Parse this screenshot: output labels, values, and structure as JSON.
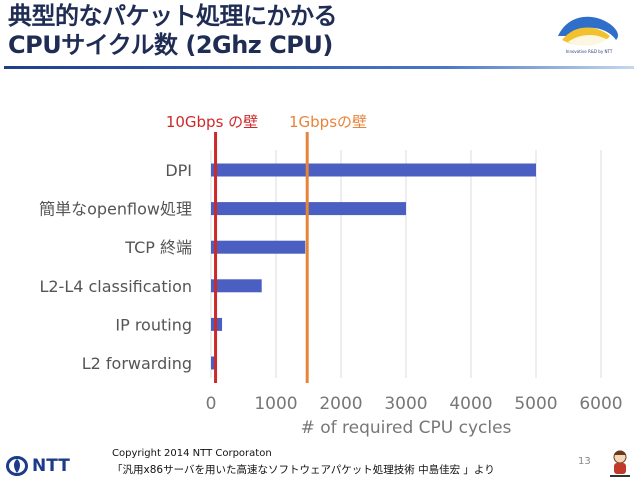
{
  "slide": {
    "title_line1": "典型的なパケット処理にかかる",
    "title_line2": "CPUサイクル数 (2Ghz CPU)",
    "logo_tagline": "Innovative R&D by NTT",
    "copyright": "Copyright 2014 NTT Corporaton",
    "source": "「汎用x86サーバを用いた高速なソフトウェアパケット処理技術 中島佳宏 」より",
    "page_number": "13",
    "brand": "NTT"
  },
  "colors": {
    "bar": "#4a5fc1",
    "line_10g": "#cc2a2a",
    "line_1g": "#e8843a",
    "grid": "#dcdcdc",
    "label": "#555555"
  },
  "chart_data": {
    "type": "bar",
    "orientation": "horizontal",
    "categories": [
      "DPI",
      "簡単なopenflow処理",
      "TCP 終端",
      "L2-L4 classification",
      "IP routing",
      "L2 forwarding"
    ],
    "values": [
      5000,
      3000,
      1450,
      780,
      170,
      60
    ],
    "xlabel": "# of required CPU cycles",
    "ylabel": "",
    "xlim": [
      0,
      6000
    ],
    "xticks": [
      "0",
      "1000",
      "2000",
      "3000",
      "4000",
      "5000",
      "6000"
    ],
    "grid": true,
    "reference_lines": [
      {
        "label": "10Gbps の壁",
        "value": 70
      },
      {
        "label": "1Gbpsの壁",
        "value": 1480
      }
    ]
  }
}
